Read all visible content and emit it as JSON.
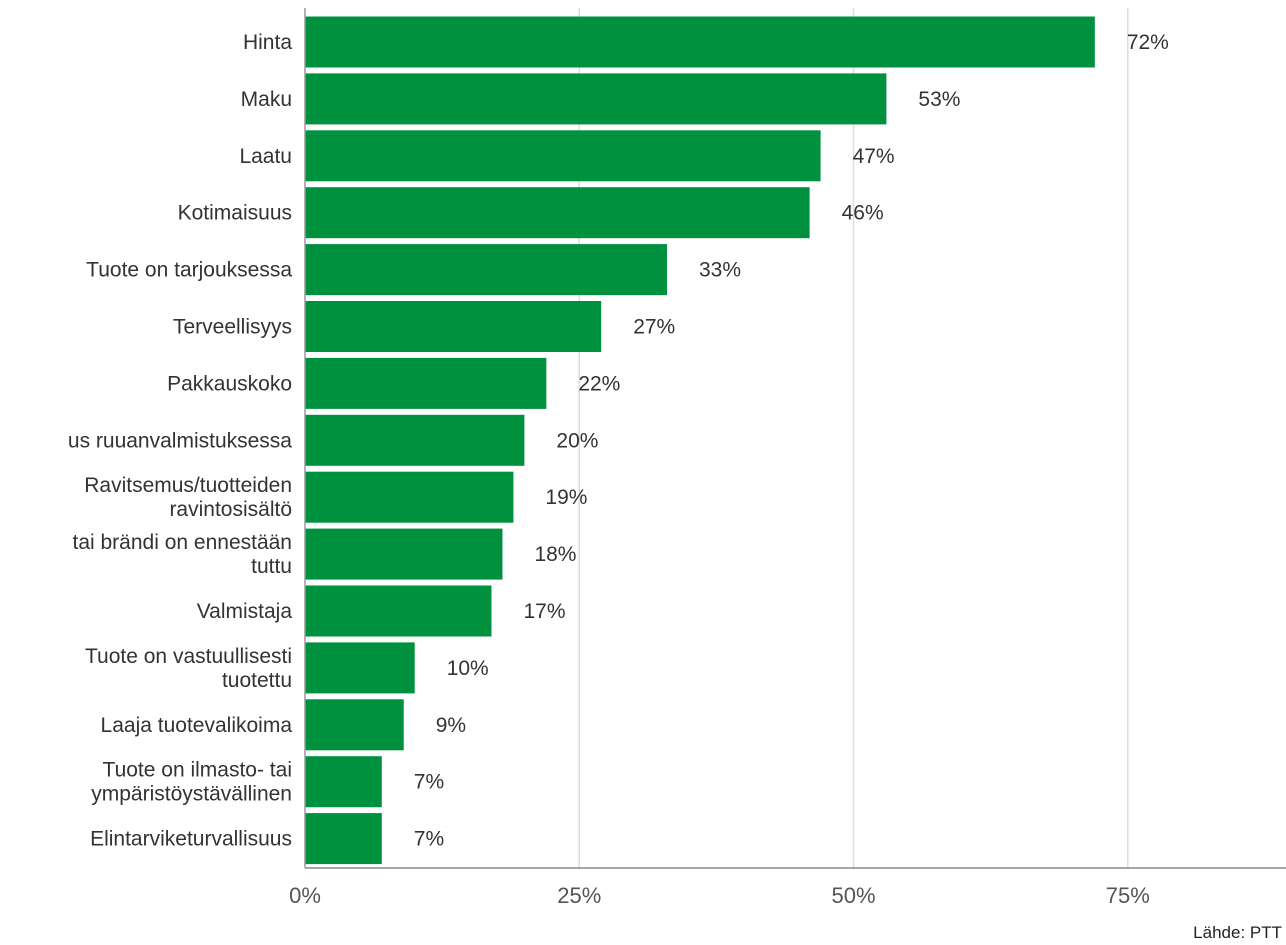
{
  "chart_data": {
    "type": "bar",
    "orientation": "horizontal",
    "categories": [
      "Hinta",
      "Maku",
      "Laatu",
      "Kotimaisuus",
      "Tuote on tarjouksessa",
      "Terveellisyys",
      "Pakkauskoko",
      "us ruuanvalmistuksessa",
      "Ravitsemus/tuotteiden ravintosisältö",
      "tai brändi on ennestään tuttu",
      "Valmistaja",
      "Tuote on vastuullisesti tuotettu",
      "Laaja tuotevalikoima",
      "Tuote on ilmasto- tai ympäristöystävällinen",
      "Elintarviketurvallisuus"
    ],
    "category_lines": [
      [
        "Hinta"
      ],
      [
        "Maku"
      ],
      [
        "Laatu"
      ],
      [
        "Kotimaisuus"
      ],
      [
        "Tuote on tarjouksessa"
      ],
      [
        "Terveellisyys"
      ],
      [
        "Pakkauskoko"
      ],
      [
        "us ruuanvalmistuksessa"
      ],
      [
        "Ravitsemus/tuotteiden",
        "ravintosisältö"
      ],
      [
        "tai brändi on ennestään",
        "tuttu"
      ],
      [
        "Valmistaja"
      ],
      [
        "Tuote on vastuullisesti",
        "tuotettu"
      ],
      [
        "Laaja tuotevalikoima"
      ],
      [
        "Tuote on ilmasto- tai",
        "ympäristöystävällinen"
      ],
      [
        "Elintarviketurvallisuus"
      ]
    ],
    "values": [
      72,
      53,
      47,
      46,
      33,
      27,
      22,
      20,
      19,
      18,
      17,
      10,
      9,
      7,
      7
    ],
    "value_labels": [
      "72%",
      "53%",
      "47%",
      "46%",
      "33%",
      "27%",
      "22%",
      "20%",
      "19%",
      "18%",
      "17%",
      "10%",
      "9%",
      "7%",
      "7%"
    ],
    "x_ticks": [
      0,
      25,
      50,
      75
    ],
    "x_tick_labels": [
      "0%",
      "25%",
      "50%",
      "75%"
    ],
    "xlim": [
      0,
      90
    ],
    "grid": "vertical",
    "bar_color": "#00913F"
  },
  "source": "Lähde: PTT"
}
